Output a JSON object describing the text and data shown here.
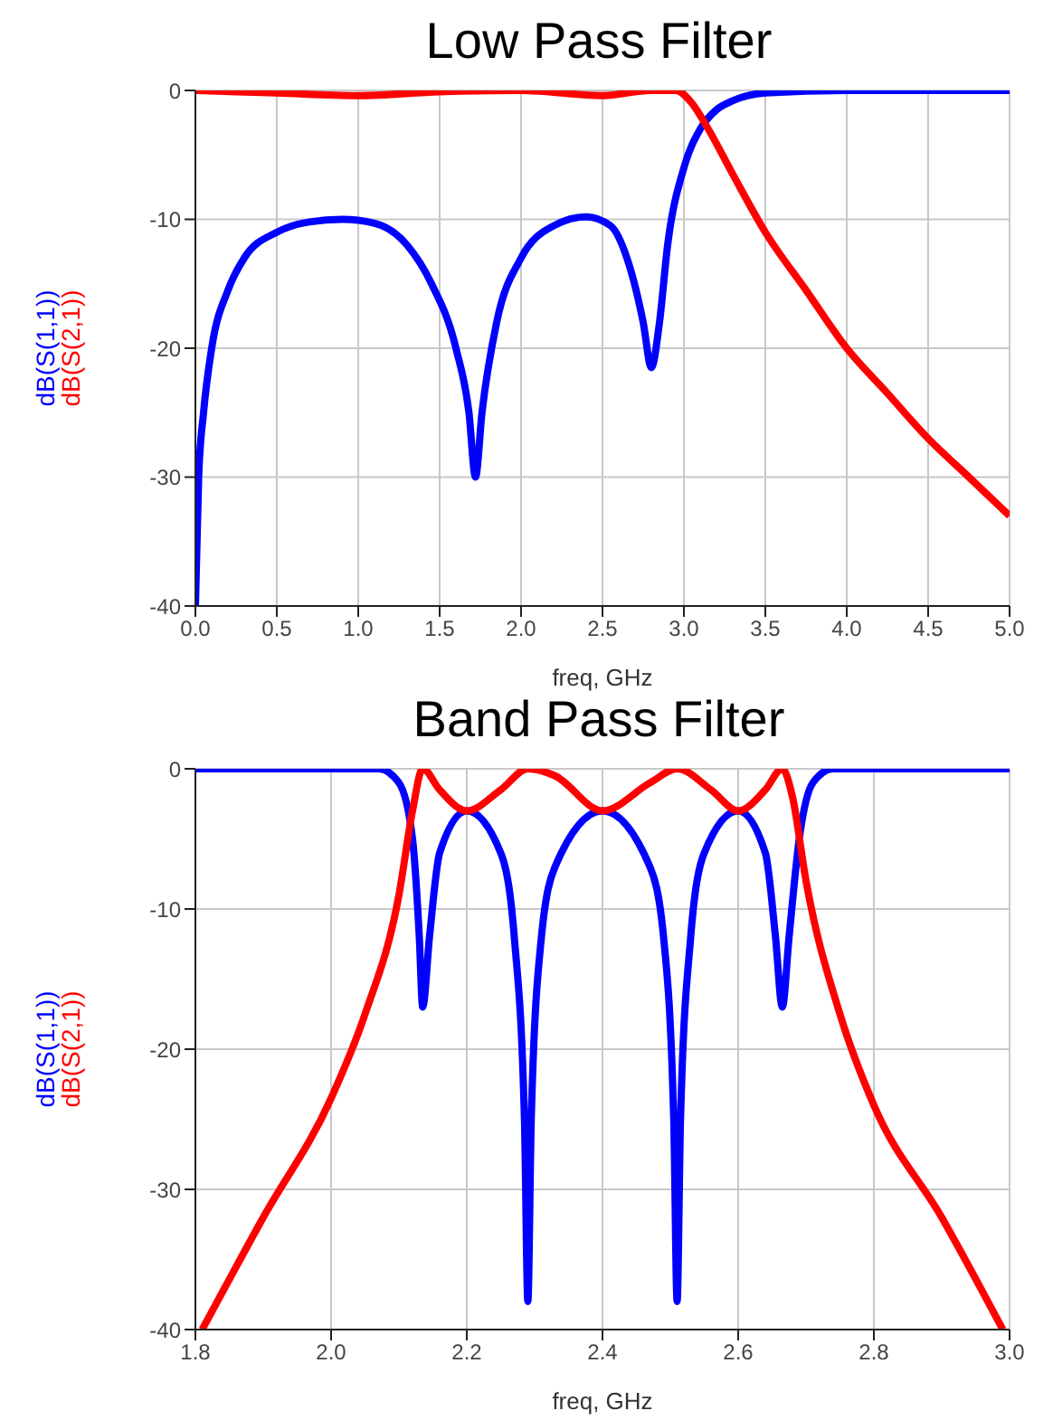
{
  "chart_data": [
    {
      "type": "line",
      "title": "Low Pass Filter",
      "xlabel": "freq, GHz",
      "xlim": [
        0,
        5
      ],
      "xticks": [
        {
          "value": 0,
          "label": "0.0"
        },
        0.5,
        {
          "value": 1,
          "label": "1.0"
        },
        1.5,
        {
          "value": 2,
          "label": "2.0"
        },
        2.5,
        {
          "value": 3,
          "label": "3.0"
        },
        3.5,
        {
          "value": 4,
          "label": "4.0"
        },
        4.5,
        {
          "value": 5,
          "label": "5.0"
        }
      ],
      "ylim": [
        -40,
        0
      ],
      "yticks": [
        -40,
        -30,
        -20,
        -10,
        0
      ],
      "grid": true,
      "series": [
        {
          "name": "dB(S(1,1))",
          "color": "#0000ff",
          "x": [
            0,
            0.02,
            0.05,
            0.1,
            0.2,
            0.3,
            0.5,
            0.7,
            0.9,
            1.1,
            1.3,
            1.45,
            1.6,
            1.68,
            1.72,
            1.76,
            1.85,
            2.0,
            2.2,
            2.4,
            2.55,
            2.65,
            2.75,
            2.8,
            2.85,
            2.9,
            3.0,
            3.1,
            3.2,
            3.3,
            3.5,
            4.0,
            5.0
          ],
          "values": [
            -40,
            -30,
            -25,
            -20,
            -15.5,
            -13,
            -11,
            -10.2,
            -10,
            -10.3,
            -12,
            -15,
            -20,
            -25,
            -30,
            -25,
            -18,
            -13,
            -10.5,
            -9.8,
            -10.5,
            -13,
            -18,
            -21.5,
            -18,
            -12,
            -6,
            -3,
            -1.5,
            -0.8,
            -0.2,
            0,
            0
          ]
        },
        {
          "name": "dB(S(2,1))",
          "color": "#ff0000",
          "x": [
            0,
            0.5,
            1.0,
            1.5,
            2.0,
            2.5,
            2.8,
            2.95,
            3.05,
            3.15,
            3.3,
            3.5,
            3.75,
            4.0,
            4.25,
            4.5,
            4.75,
            5.0
          ],
          "values": [
            0,
            -0.2,
            -0.4,
            -0.1,
            0,
            -0.4,
            0,
            0,
            -1,
            -3,
            -6.5,
            -11,
            -15.5,
            -20,
            -23.5,
            -27,
            -30,
            -33
          ]
        }
      ]
    },
    {
      "type": "line",
      "title": "Band Pass Filter",
      "xlabel": "freq, GHz",
      "xlim": [
        1.8,
        3.0
      ],
      "xticks": [
        1.8,
        {
          "value": 2,
          "label": "2.0"
        },
        2.2,
        2.4,
        2.6,
        2.8,
        {
          "value": 3,
          "label": "3.0"
        }
      ],
      "ylim": [
        -40,
        0
      ],
      "yticks": [
        -40,
        -30,
        -20,
        -10,
        0
      ],
      "grid": true,
      "series": [
        {
          "name": "dB(S(1,1))",
          "color": "#0000ff",
          "x": [
            1.8,
            2.07,
            2.1,
            2.12,
            2.13,
            2.135,
            2.145,
            2.16,
            2.2,
            2.25,
            2.27,
            2.285,
            2.29,
            2.295,
            2.31,
            2.33,
            2.4,
            2.47,
            2.49,
            2.505,
            2.51,
            2.515,
            2.53,
            2.55,
            2.6,
            2.64,
            2.655,
            2.665,
            2.675,
            2.69,
            2.71,
            2.74,
            3.0
          ],
          "values": [
            0,
            0,
            -1,
            -5,
            -12,
            -17,
            -12,
            -6,
            -3,
            -6,
            -12,
            -25,
            -38,
            -25,
            -12,
            -7,
            -3,
            -7,
            -12,
            -25,
            -38,
            -25,
            -12,
            -6,
            -3,
            -6,
            -12,
            -17,
            -12,
            -5,
            -1,
            0,
            0
          ]
        },
        {
          "name": "dB(S(2,1))",
          "color": "#ff0000",
          "x": [
            1.81,
            1.9,
            2.0,
            2.05,
            2.1,
            2.12,
            2.135,
            2.16,
            2.2,
            2.25,
            2.29,
            2.33,
            2.4,
            2.47,
            2.51,
            2.56,
            2.6,
            2.64,
            2.665,
            2.68,
            2.7,
            2.75,
            2.8,
            2.9,
            2.99
          ],
          "values": [
            -40,
            -32,
            -23.5,
            -17.5,
            -9,
            -3,
            0,
            -1.5,
            -3,
            -1.5,
            0,
            -0.5,
            -3,
            -1,
            0,
            -1.5,
            -3,
            -1.5,
            0,
            -2,
            -8,
            -17.5,
            -24,
            -32,
            -40
          ]
        }
      ]
    }
  ]
}
